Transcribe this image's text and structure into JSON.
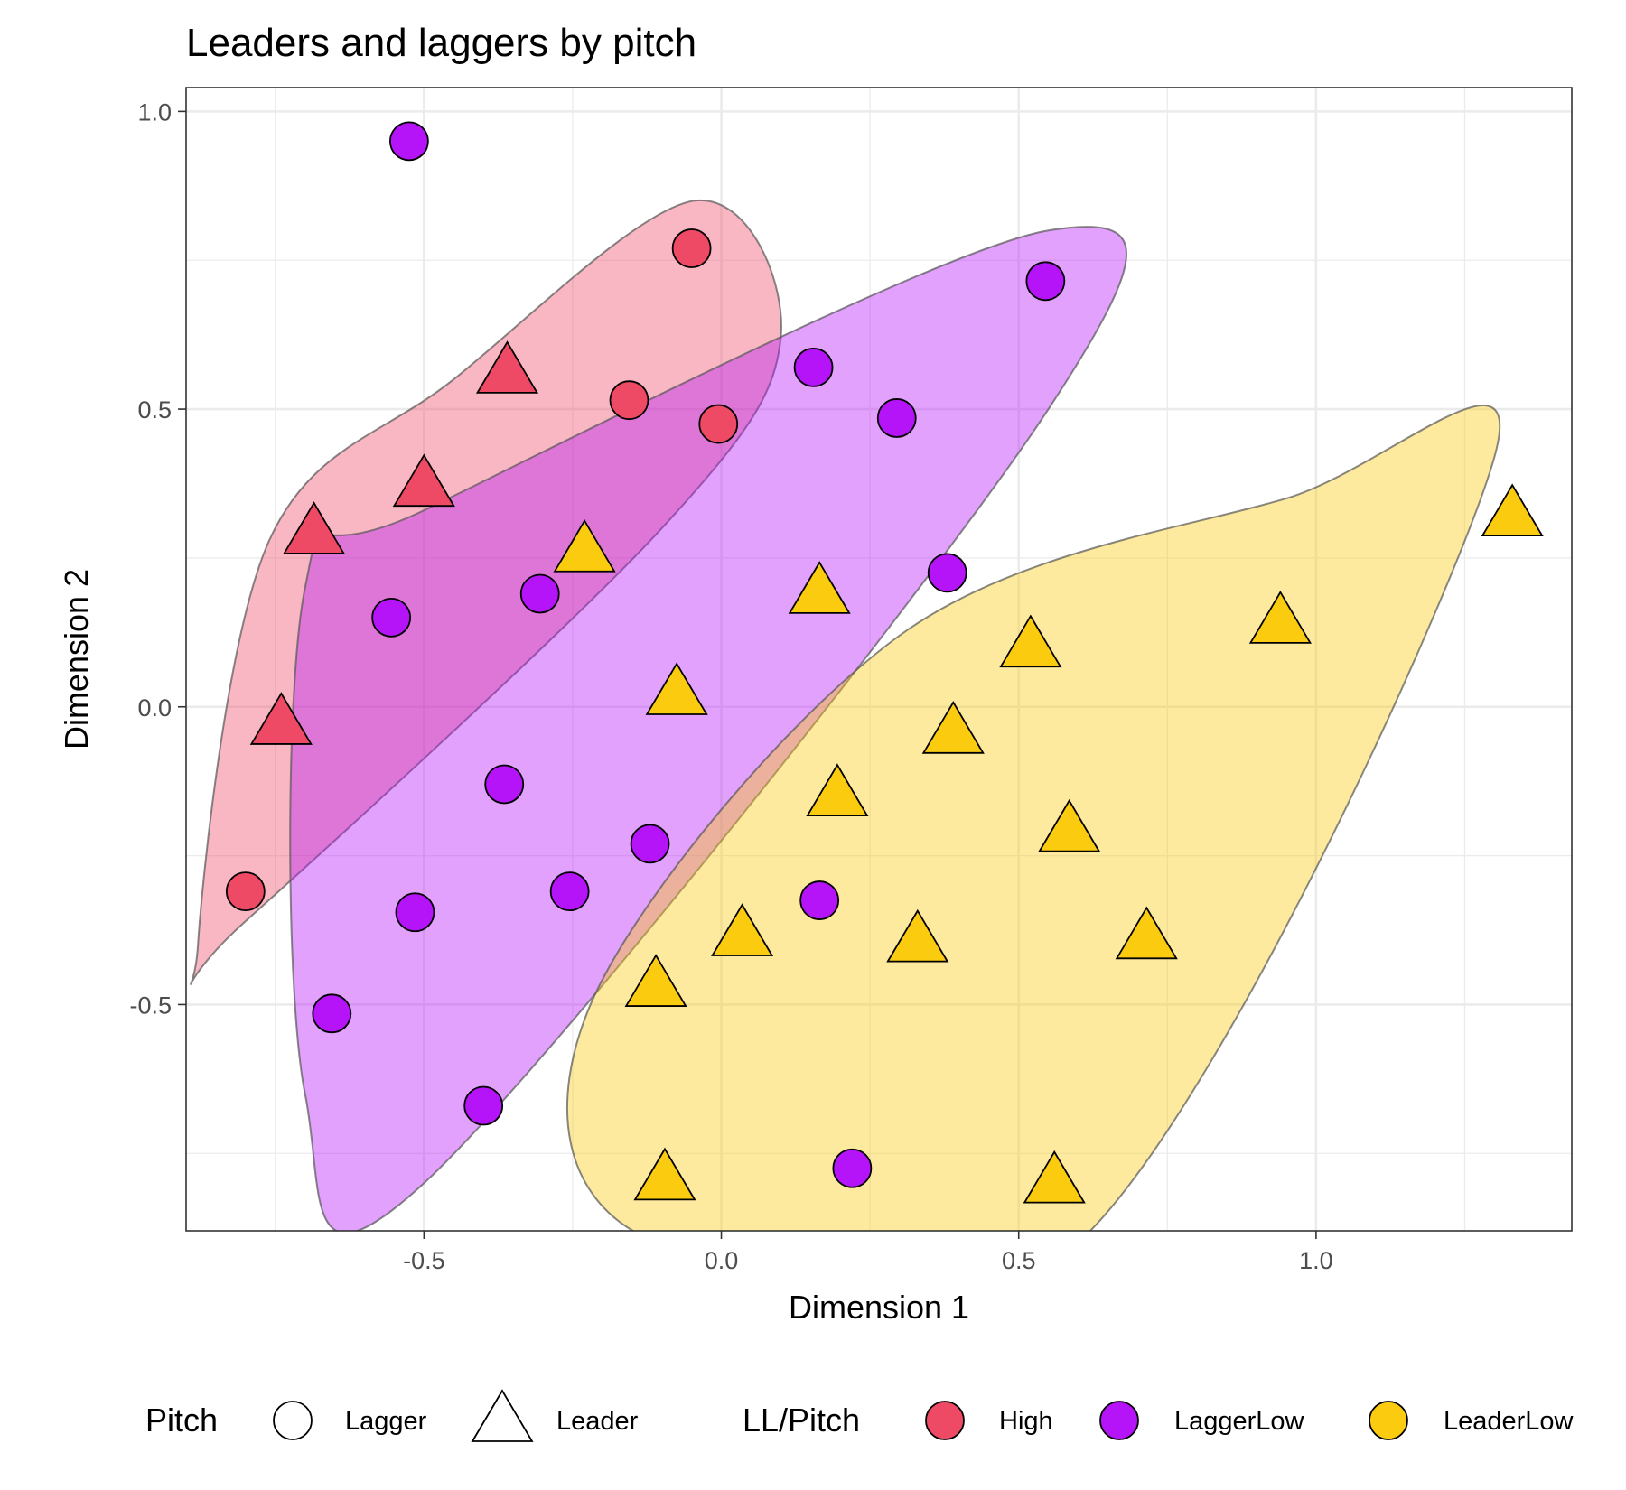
{
  "chart_data": {
    "type": "scatter",
    "title": "Leaders and laggers by pitch",
    "xlabel": "Dimension 1",
    "ylabel": "Dimension 2",
    "xlim": [
      -0.9,
      1.43
    ],
    "ylim": [
      -0.88,
      1.04
    ],
    "x_ticks": [
      -0.5,
      0.0,
      0.5,
      1.0
    ],
    "x_tick_labels": [
      "-0.5",
      "0.0",
      "0.5",
      "1.0"
    ],
    "y_ticks": [
      -0.5,
      0.0,
      0.5,
      1.0
    ],
    "y_tick_labels": [
      "-0.5",
      "0.0",
      "0.5",
      "1.0"
    ],
    "grid": true,
    "legend_position": "bottom",
    "legends": {
      "shape": {
        "title": "Pitch",
        "items": [
          {
            "label": "Lagger",
            "shape": "circle"
          },
          {
            "label": "Leader",
            "shape": "triangle"
          }
        ]
      },
      "fill": {
        "title": "LL/Pitch",
        "items": [
          {
            "label": "High",
            "color": "#EE4A66"
          },
          {
            "label": "LaggerLow",
            "color": "#B414F7"
          },
          {
            "label": "LeaderLow",
            "color": "#FBCB10"
          }
        ]
      }
    },
    "series": [
      {
        "group": "High",
        "color": "#EE4A66",
        "hull_color": "#F5A0B2",
        "points": [
          {
            "x": -0.05,
            "y": 0.77,
            "shape": "circle"
          },
          {
            "x": -0.155,
            "y": 0.515,
            "shape": "circle"
          },
          {
            "x": -0.005,
            "y": 0.475,
            "shape": "circle"
          },
          {
            "x": -0.8,
            "y": -0.31,
            "shape": "circle"
          },
          {
            "x": -0.36,
            "y": 0.57,
            "shape": "triangle"
          },
          {
            "x": -0.5,
            "y": 0.38,
            "shape": "triangle"
          },
          {
            "x": -0.685,
            "y": 0.3,
            "shape": "triangle"
          },
          {
            "x": -0.74,
            "y": -0.02,
            "shape": "triangle"
          }
        ],
        "hull": [
          [
            -0.045,
            0.85
          ],
          [
            0.1,
            0.62
          ],
          [
            -0.1,
            0.3
          ],
          [
            -0.8,
            -0.36
          ],
          [
            -0.88,
            -0.4
          ],
          [
            -0.76,
            0.28
          ],
          [
            -0.45,
            0.55
          ]
        ]
      },
      {
        "group": "LaggerLow",
        "color": "#B414F7",
        "hull_color": "#D679FB",
        "points": [
          {
            "x": -0.525,
            "y": 0.95,
            "shape": "circle"
          },
          {
            "x": 0.545,
            "y": 0.715,
            "shape": "circle"
          },
          {
            "x": 0.155,
            "y": 0.57,
            "shape": "circle"
          },
          {
            "x": 0.295,
            "y": 0.485,
            "shape": "circle"
          },
          {
            "x": 0.38,
            "y": 0.225,
            "shape": "circle"
          },
          {
            "x": -0.305,
            "y": 0.19,
            "shape": "circle"
          },
          {
            "x": -0.555,
            "y": 0.15,
            "shape": "circle"
          },
          {
            "x": -0.365,
            "y": -0.13,
            "shape": "circle"
          },
          {
            "x": -0.12,
            "y": -0.23,
            "shape": "circle"
          },
          {
            "x": -0.255,
            "y": -0.31,
            "shape": "circle"
          },
          {
            "x": -0.515,
            "y": -0.345,
            "shape": "circle"
          },
          {
            "x": 0.165,
            "y": -0.325,
            "shape": "circle"
          },
          {
            "x": -0.655,
            "y": -0.515,
            "shape": "circle"
          },
          {
            "x": -0.4,
            "y": -0.67,
            "shape": "circle"
          },
          {
            "x": 0.22,
            "y": -0.775,
            "shape": "circle"
          }
        ],
        "hull": [
          [
            0.55,
            0.8
          ],
          [
            0.55,
            0.5
          ],
          [
            -0.5,
            -0.8
          ],
          [
            -0.7,
            -0.65
          ],
          [
            -0.7,
            0.2
          ],
          [
            -0.5,
            0.33
          ]
        ]
      },
      {
        "group": "LeaderLow",
        "color": "#FBCB10",
        "hull_color": "#FCE57E",
        "points": [
          {
            "x": 1.33,
            "y": 0.33,
            "shape": "triangle"
          },
          {
            "x": 0.94,
            "y": 0.15,
            "shape": "triangle"
          },
          {
            "x": -0.23,
            "y": 0.27,
            "shape": "triangle"
          },
          {
            "x": 0.165,
            "y": 0.2,
            "shape": "triangle"
          },
          {
            "x": 0.52,
            "y": 0.11,
            "shape": "triangle"
          },
          {
            "x": -0.075,
            "y": 0.03,
            "shape": "triangle"
          },
          {
            "x": 0.39,
            "y": -0.035,
            "shape": "triangle"
          },
          {
            "x": 0.195,
            "y": -0.14,
            "shape": "triangle"
          },
          {
            "x": 0.585,
            "y": -0.2,
            "shape": "triangle"
          },
          {
            "x": 0.035,
            "y": -0.375,
            "shape": "triangle"
          },
          {
            "x": 0.33,
            "y": -0.385,
            "shape": "triangle"
          },
          {
            "x": 0.715,
            "y": -0.38,
            "shape": "triangle"
          },
          {
            "x": -0.11,
            "y": -0.46,
            "shape": "triangle"
          },
          {
            "x": -0.095,
            "y": -0.785,
            "shape": "triangle"
          },
          {
            "x": 0.56,
            "y": -0.79,
            "shape": "triangle"
          }
        ],
        "hull": [
          [
            1.3,
            0.42
          ],
          [
            0.6,
            -0.9
          ],
          [
            -0.13,
            -0.89
          ],
          [
            -0.22,
            -0.5
          ],
          [
            0.3,
            0.12
          ],
          [
            0.95,
            0.35
          ]
        ]
      }
    ]
  }
}
